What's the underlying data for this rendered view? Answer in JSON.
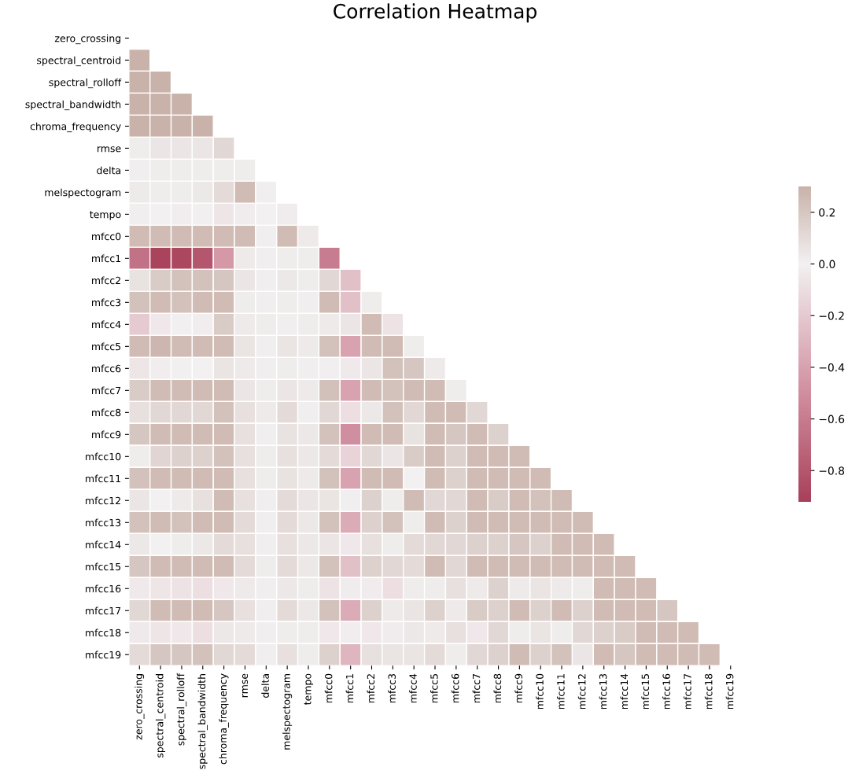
{
  "chart_data": {
    "type": "heatmap",
    "title": "Correlation Heatmap",
    "categories": [
      "zero_crossing",
      "spectral_centroid",
      "spectral_rolloff",
      "spectral_bandwidth",
      "chroma_frequency",
      "rmse",
      "delta",
      "melspectogram",
      "tempo",
      "mfcc0",
      "mfcc1",
      "mfcc2",
      "mfcc3",
      "mfcc4",
      "mfcc5",
      "mfcc6",
      "mfcc7",
      "mfcc8",
      "mfcc9",
      "mfcc10",
      "mfcc11",
      "mfcc12",
      "mfcc13",
      "mfcc14",
      "mfcc15",
      "mfcc16",
      "mfcc17",
      "mfcc18",
      "mfcc19"
    ],
    "y_categories": [
      "zero_crossing",
      "spectral_centroid",
      "spectral_rolloff",
      "spectral_bandwidth",
      "chroma_frequency",
      "rmse",
      "delta",
      "melspectogram",
      "tempo",
      "mfcc0",
      "mfcc1",
      "mfcc2",
      "mfcc3",
      "mfcc4",
      "mfcc5",
      "mfcc6",
      "mfcc7",
      "mfcc8",
      "mfcc9",
      "mfcc10",
      "mfcc11",
      "mfcc12",
      "mfcc13",
      "mfcc14",
      "mfcc15",
      "mfcc16",
      "mfcc17",
      "mfcc18",
      "mfcc19"
    ],
    "cells": [
      [
        null,
        null,
        null,
        null,
        null,
        null,
        null,
        null,
        null,
        null,
        null,
        null,
        null,
        null,
        null,
        null,
        null,
        null,
        null,
        null,
        null,
        null,
        null,
        null,
        null,
        null,
        null,
        null,
        null
      ],
      [
        0.3,
        null,
        null,
        null,
        null,
        null,
        null,
        null,
        null,
        null,
        null,
        null,
        null,
        null,
        null,
        null,
        null,
        null,
        null,
        null,
        null,
        null,
        null,
        null,
        null,
        null,
        null,
        null,
        null
      ],
      [
        0.3,
        0.3,
        null,
        null,
        null,
        null,
        null,
        null,
        null,
        null,
        null,
        null,
        null,
        null,
        null,
        null,
        null,
        null,
        null,
        null,
        null,
        null,
        null,
        null,
        null,
        null,
        null,
        null,
        null
      ],
      [
        0.3,
        0.3,
        0.3,
        null,
        null,
        null,
        null,
        null,
        null,
        null,
        null,
        null,
        null,
        null,
        null,
        null,
        null,
        null,
        null,
        null,
        null,
        null,
        null,
        null,
        null,
        null,
        null,
        null,
        null
      ],
      [
        0.3,
        0.3,
        0.3,
        0.3,
        null,
        null,
        null,
        null,
        null,
        null,
        null,
        null,
        null,
        null,
        null,
        null,
        null,
        null,
        null,
        null,
        null,
        null,
        null,
        null,
        null,
        null,
        null,
        null,
        null
      ],
      [
        0.02,
        0.05,
        0.05,
        0.05,
        0.12,
        null,
        null,
        null,
        null,
        null,
        null,
        null,
        null,
        null,
        null,
        null,
        null,
        null,
        null,
        null,
        null,
        null,
        null,
        null,
        null,
        null,
        null,
        null,
        null
      ],
      [
        0.01,
        0.02,
        0.02,
        0.02,
        0.02,
        0.02,
        null,
        null,
        null,
        null,
        null,
        null,
        null,
        null,
        null,
        null,
        null,
        null,
        null,
        null,
        null,
        null,
        null,
        null,
        null,
        null,
        null,
        null,
        null
      ],
      [
        0.03,
        0.02,
        0.02,
        0.04,
        0.1,
        0.25,
        0.01,
        null,
        null,
        null,
        null,
        null,
        null,
        null,
        null,
        null,
        null,
        null,
        null,
        null,
        null,
        null,
        null,
        null,
        null,
        null,
        null,
        null,
        null
      ],
      [
        0.01,
        0.0,
        -0.02,
        -0.01,
        -0.06,
        -0.03,
        0.0,
        -0.03,
        null,
        null,
        null,
        null,
        null,
        null,
        null,
        null,
        null,
        null,
        null,
        null,
        null,
        null,
        null,
        null,
        null,
        null,
        null,
        null,
        null
      ],
      [
        0.25,
        0.25,
        0.25,
        0.25,
        0.25,
        0.25,
        0.01,
        0.25,
        0.03,
        null,
        null,
        null,
        null,
        null,
        null,
        null,
        null,
        null,
        null,
        null,
        null,
        null,
        null,
        null,
        null,
        null,
        null,
        null,
        null
      ],
      [
        -0.65,
        -0.9,
        -0.88,
        -0.8,
        -0.45,
        0.03,
        0.01,
        0.02,
        0.02,
        -0.6,
        null,
        null,
        null,
        null,
        null,
        null,
        null,
        null,
        null,
        null,
        null,
        null,
        null,
        null,
        null,
        null,
        null,
        null,
        null
      ],
      [
        0.07,
        0.18,
        0.22,
        0.22,
        0.2,
        0.05,
        0.01,
        0.04,
        0.02,
        0.12,
        -0.25,
        null,
        null,
        null,
        null,
        null,
        null,
        null,
        null,
        null,
        null,
        null,
        null,
        null,
        null,
        null,
        null,
        null,
        null
      ],
      [
        0.22,
        0.25,
        0.22,
        0.25,
        0.25,
        0.02,
        0.01,
        0.02,
        0.01,
        0.25,
        -0.25,
        0.02,
        null,
        null,
        null,
        null,
        null,
        null,
        null,
        null,
        null,
        null,
        null,
        null,
        null,
        null,
        null,
        null,
        null
      ],
      [
        -0.2,
        -0.05,
        -0.01,
        -0.02,
        0.18,
        0.03,
        0.02,
        0.01,
        0.02,
        0.03,
        0.05,
        0.25,
        -0.08,
        null,
        null,
        null,
        null,
        null,
        null,
        null,
        null,
        null,
        null,
        null,
        null,
        null,
        null,
        null,
        null
      ],
      [
        0.25,
        0.28,
        0.25,
        0.25,
        0.25,
        0.06,
        0.01,
        0.06,
        0.03,
        0.22,
        -0.4,
        0.25,
        0.25,
        0.02,
        null,
        null,
        null,
        null,
        null,
        null,
        null,
        null,
        null,
        null,
        null,
        null,
        null,
        null,
        null
      ],
      [
        -0.06,
        -0.02,
        -0.01,
        0.0,
        0.06,
        0.03,
        0.01,
        0.02,
        0.01,
        0.01,
        -0.04,
        0.05,
        0.22,
        0.2,
        0.03,
        null,
        null,
        null,
        null,
        null,
        null,
        null,
        null,
        null,
        null,
        null,
        null,
        null,
        null
      ],
      [
        0.18,
        0.25,
        0.25,
        0.25,
        0.25,
        0.05,
        0.02,
        0.05,
        0.03,
        0.23,
        -0.4,
        0.25,
        0.22,
        0.25,
        0.25,
        0.02,
        null,
        null,
        null,
        null,
        null,
        null,
        null,
        null,
        null,
        null,
        null,
        null,
        null
      ],
      [
        0.08,
        0.12,
        0.12,
        0.12,
        0.22,
        0.08,
        0.03,
        0.1,
        0.01,
        0.12,
        -0.1,
        0.04,
        0.22,
        0.12,
        0.25,
        0.25,
        0.12,
        null,
        null,
        null,
        null,
        null,
        null,
        null,
        null,
        null,
        null,
        null,
        null
      ],
      [
        0.2,
        0.25,
        0.25,
        0.25,
        0.25,
        0.08,
        0.01,
        0.07,
        0.04,
        0.22,
        -0.5,
        0.25,
        0.25,
        0.07,
        0.25,
        0.2,
        0.25,
        0.15,
        null,
        null,
        null,
        null,
        null,
        null,
        null,
        null,
        null,
        null,
        null
      ],
      [
        0.02,
        0.13,
        0.15,
        0.15,
        0.22,
        0.08,
        0.02,
        0.08,
        0.04,
        0.1,
        -0.15,
        0.12,
        0.05,
        0.18,
        0.25,
        0.15,
        0.25,
        0.25,
        0.25,
        null,
        null,
        null,
        null,
        null,
        null,
        null,
        null,
        null,
        null
      ],
      [
        0.22,
        0.25,
        0.25,
        0.25,
        0.25,
        0.08,
        0.02,
        0.07,
        0.03,
        0.22,
        -0.4,
        0.25,
        0.25,
        0.0,
        0.25,
        0.15,
        0.25,
        0.25,
        0.25,
        0.25,
        null,
        null,
        null,
        null,
        null,
        null,
        null,
        null,
        null
      ],
      [
        0.05,
        0.0,
        0.03,
        0.08,
        0.25,
        0.08,
        0.01,
        0.1,
        0.05,
        0.06,
        0.01,
        0.15,
        0.02,
        0.25,
        0.12,
        0.12,
        0.25,
        0.18,
        0.25,
        0.22,
        0.25,
        null,
        null,
        null,
        null,
        null,
        null,
        null,
        null
      ],
      [
        0.22,
        0.25,
        0.22,
        0.25,
        0.25,
        0.1,
        0.01,
        0.1,
        0.04,
        0.22,
        -0.35,
        0.15,
        0.22,
        0.02,
        0.25,
        0.15,
        0.25,
        0.25,
        0.25,
        0.25,
        0.25,
        0.25,
        null,
        null,
        null,
        null,
        null,
        null,
        null
      ],
      [
        0.04,
        0.0,
        0.02,
        0.04,
        0.1,
        0.08,
        0.01,
        0.08,
        0.04,
        0.05,
        -0.05,
        0.08,
        0.02,
        0.1,
        0.12,
        0.12,
        0.15,
        0.15,
        0.2,
        0.15,
        0.25,
        0.25,
        0.25,
        null,
        null,
        null,
        null,
        null,
        null
      ],
      [
        0.2,
        0.25,
        0.25,
        0.25,
        0.25,
        0.1,
        0.02,
        0.1,
        0.04,
        0.22,
        -0.25,
        0.15,
        0.12,
        0.1,
        0.25,
        0.12,
        0.25,
        0.25,
        0.25,
        0.25,
        0.25,
        0.25,
        0.25,
        0.25,
        null,
        null,
        null,
        null,
        null
      ],
      [
        -0.04,
        -0.06,
        -0.08,
        -0.1,
        -0.05,
        0.03,
        0.01,
        0.04,
        0.02,
        -0.08,
        -0.03,
        -0.03,
        -0.1,
        0.02,
        0.02,
        0.08,
        0.03,
        0.15,
        0.03,
        0.06,
        0.03,
        0.02,
        0.25,
        0.25,
        0.25,
        null,
        null,
        null,
        null
      ],
      [
        0.12,
        0.25,
        0.25,
        0.25,
        0.2,
        0.08,
        0.01,
        0.1,
        0.04,
        0.22,
        -0.35,
        0.15,
        0.03,
        0.06,
        0.15,
        0.03,
        0.18,
        0.15,
        0.25,
        0.15,
        0.25,
        0.15,
        0.25,
        0.25,
        0.25,
        0.2,
        null,
        null,
        null
      ],
      [
        -0.04,
        -0.06,
        -0.05,
        -0.1,
        0.04,
        0.03,
        0.01,
        0.02,
        0.02,
        -0.05,
        -0.02,
        -0.05,
        -0.03,
        0.04,
        0.03,
        0.08,
        -0.05,
        0.12,
        0.02,
        0.06,
        0.02,
        0.12,
        0.15,
        0.18,
        0.25,
        0.25,
        0.25,
        null,
        null
      ],
      [
        0.1,
        0.2,
        0.2,
        0.22,
        0.12,
        0.1,
        0.01,
        0.08,
        0.02,
        0.15,
        -0.3,
        0.08,
        0.06,
        0.06,
        0.1,
        0.02,
        0.12,
        0.15,
        0.25,
        0.15,
        0.22,
        0.05,
        0.25,
        0.2,
        0.25,
        0.25,
        0.25,
        0.25,
        null
      ]
    ],
    "clim": [
      -0.92,
      0.3
    ],
    "cticks": [
      {
        "value": -0.8,
        "label": "−0.8"
      },
      {
        "value": -0.6,
        "label": "−0.6"
      },
      {
        "value": -0.4,
        "label": "−0.4"
      },
      {
        "value": -0.2,
        "label": "−0.2"
      },
      {
        "value": 0.0,
        "label": "0.0"
      },
      {
        "value": 0.2,
        "label": "0.2"
      }
    ]
  }
}
